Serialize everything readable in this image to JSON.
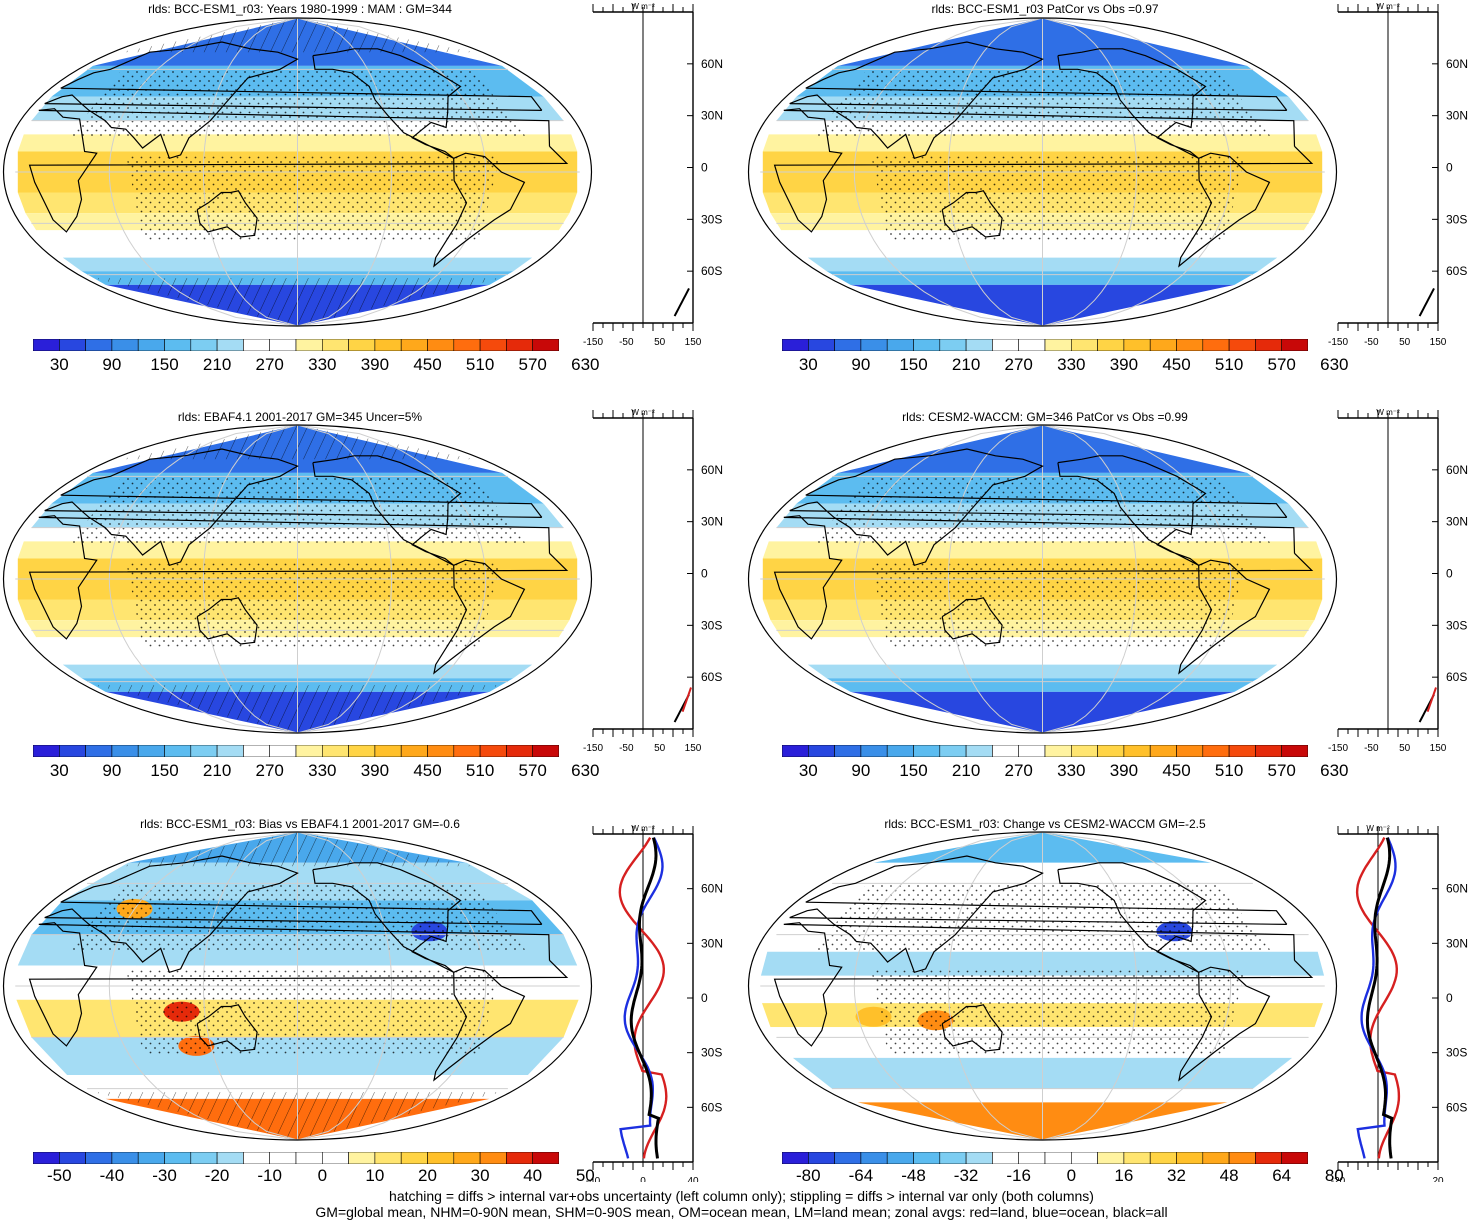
{
  "panels": [
    {
      "title": "rlds: BCC-ESM1_r03: Years 1980-1999 : MAM : GM=344",
      "kind": "abs",
      "colorbar_labels": [
        "30",
        "90",
        "150",
        "210",
        "270",
        "330",
        "390",
        "450",
        "510",
        "570",
        "630"
      ],
      "zonal": {
        "unit": "W m⁻²",
        "xticks": [
          "-150",
          "-50",
          "50",
          "150"
        ],
        "yticks": [
          "60N",
          "30N",
          "0",
          "30S",
          "60S"
        ]
      }
    },
    {
      "title": "rlds: BCC-ESM1_r03 PatCor vs Obs =0.97",
      "kind": "abs",
      "colorbar_labels": [
        "30",
        "90",
        "150",
        "210",
        "270",
        "330",
        "390",
        "450",
        "510",
        "570",
        "630"
      ],
      "zonal": {
        "unit": "W m⁻²",
        "xticks": [
          "-150",
          "-50",
          "50",
          "150"
        ],
        "yticks": [
          "60N",
          "30N",
          "0",
          "30S",
          "60S"
        ]
      }
    },
    {
      "title": "rlds: EBAF4.1 2001-2017 GM=345 Uncer=5%",
      "kind": "abs",
      "colorbar_labels": [
        "30",
        "90",
        "150",
        "210",
        "270",
        "330",
        "390",
        "450",
        "510",
        "570",
        "630"
      ],
      "zonal": {
        "unit": "W m⁻²",
        "xticks": [
          "-150",
          "-50",
          "50",
          "150"
        ],
        "yticks": [
          "60N",
          "30N",
          "0",
          "30S",
          "60S"
        ]
      }
    },
    {
      "title": "rlds: CESM2-WACCM: GM=346 PatCor vs Obs =0.99",
      "kind": "abs",
      "colorbar_labels": [
        "30",
        "90",
        "150",
        "210",
        "270",
        "330",
        "390",
        "450",
        "510",
        "570",
        "630"
      ],
      "zonal": {
        "unit": "W m⁻²",
        "xticks": [
          "-150",
          "-50",
          "50",
          "150"
        ],
        "yticks": [
          "60N",
          "30N",
          "0",
          "30S",
          "60S"
        ]
      }
    },
    {
      "title": "rlds: BCC-ESM1_r03: Bias vs EBAF4.1 2001-2017 GM=-0.6",
      "kind": "bias",
      "colorbar_labels": [
        "-50",
        "-40",
        "-30",
        "-20",
        "-10",
        "0",
        "10",
        "20",
        "30",
        "40",
        "50"
      ],
      "zonal": {
        "unit": "W m⁻²",
        "xticks": [
          "-40",
          "0",
          "40"
        ],
        "yticks": [
          "60N",
          "30N",
          "0",
          "30S",
          "60S"
        ]
      }
    },
    {
      "title": "rlds: BCC-ESM1_r03: Change vs CESM2-WACCM GM=-2.5",
      "kind": "change",
      "colorbar_labels": [
        "-80",
        "-64",
        "-48",
        "-32",
        "-16",
        "0",
        "16",
        "32",
        "48",
        "64",
        "80"
      ],
      "zonal": {
        "unit": "W m⁻²",
        "xticks": [
          "-20",
          "20"
        ],
        "yticks": [
          "60N",
          "30N",
          "0",
          "30S",
          "60S"
        ]
      }
    }
  ],
  "colors": {
    "abs_scale": [
      "#2a1fd9",
      "#2847e0",
      "#2f6fe6",
      "#3a8fe8",
      "#49a8ec",
      "#5cbcf0",
      "#7ccdf2",
      "#a4dcf4",
      "#ffffff",
      "#ffffff",
      "#fff3a0",
      "#ffe570",
      "#ffd445",
      "#ffc02a",
      "#ffa81b",
      "#ff8c12",
      "#ff6d0e",
      "#f54a0c",
      "#e52a0a",
      "#c80808"
    ],
    "div_scale": [
      "#2a1fd9",
      "#2847e0",
      "#2f6fe6",
      "#3a8fe8",
      "#49a8ec",
      "#5cbcf0",
      "#7ccdf2",
      "#a4dcf4",
      "#ffffff",
      "#ffffff",
      "#ffffff",
      "#ffffff",
      "#fff3a0",
      "#ffe570",
      "#ffd445",
      "#ffc02a",
      "#ffa81b",
      "#ff8c12",
      "#e52a0a",
      "#c80808"
    ],
    "land_line": "#d62020",
    "ocean_line": "#1c2fe0",
    "all_line": "#000000"
  },
  "footer": [
    "hatching = diffs > internal var+obs uncertainty (left column only); stippling = diffs > internal var only (both columns)",
    "GM=global mean, NHM=0-90N mean, SHM=0-90S mean, OM=ocean mean, LM=land mean; zonal avgs: red=land, blue=ocean, black=all"
  ]
}
